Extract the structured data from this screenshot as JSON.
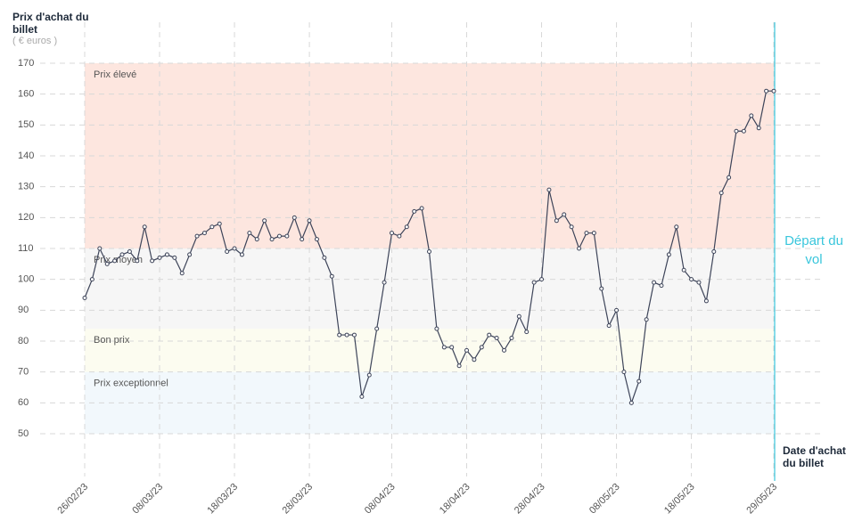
{
  "chart_data": {
    "type": "line",
    "y_title": "Prix d'achat du billet",
    "y_unit": "( € euros )",
    "x_title": "Date d'achat du billet",
    "departure_label": "Départ du vol",
    "departure_color": "#39c6dc",
    "categories": [
      "26/02/23",
      null,
      null,
      null,
      null,
      null,
      null,
      null,
      null,
      null,
      "08/03/23",
      null,
      null,
      null,
      null,
      null,
      null,
      null,
      null,
      null,
      "18/03/23",
      null,
      null,
      null,
      null,
      null,
      null,
      null,
      null,
      null,
      "28/03/23",
      null,
      null,
      null,
      null,
      null,
      null,
      null,
      null,
      null,
      null,
      "08/04/23",
      null,
      null,
      null,
      null,
      null,
      null,
      null,
      null,
      null,
      "18/04/23",
      null,
      null,
      null,
      null,
      null,
      null,
      null,
      null,
      null,
      "28/04/23",
      null,
      null,
      null,
      null,
      null,
      null,
      null,
      null,
      null,
      "08/05/23",
      null,
      null,
      null,
      null,
      null,
      null,
      null,
      null,
      null,
      "18/05/23",
      null,
      null,
      null,
      null,
      null,
      null,
      null,
      null,
      null,
      null,
      "29/05/23"
    ],
    "series": [
      {
        "name": null,
        "color": "#3d4459",
        "values": [
          94,
          100,
          110,
          105,
          106,
          108,
          109,
          106,
          117,
          106,
          107,
          108,
          107,
          102,
          108,
          114,
          115,
          117,
          118,
          109,
          110,
          108,
          115,
          113,
          119,
          113,
          114,
          114,
          120,
          113,
          119,
          113,
          107,
          101,
          82,
          82,
          82,
          62,
          69,
          84,
          99,
          115,
          114,
          117,
          122,
          123,
          109,
          84,
          78,
          78,
          72,
          77,
          74,
          78,
          82,
          81,
          77,
          81,
          88,
          83,
          99,
          100,
          129,
          119,
          121,
          117,
          110,
          115,
          115,
          97,
          85,
          90,
          70,
          60,
          67,
          87,
          99,
          98,
          108,
          117,
          103,
          100,
          99,
          93,
          109,
          128,
          133,
          148,
          148,
          153,
          149,
          161,
          161
        ]
      }
    ],
    "bands": [
      {
        "name": "Prix élevé",
        "from": 110,
        "to": 170,
        "color": "#fde6df"
      },
      {
        "name": "Prix moyen",
        "from": 84,
        "to": 110,
        "color": "#f6f6f6"
      },
      {
        "name": "Bon prix",
        "from": 70,
        "to": 84,
        "color": "#fcfcf0"
      },
      {
        "name": "Prix exceptionnel",
        "from": 50,
        "to": 70,
        "color": "#f2f8fc"
      }
    ],
    "ylim": [
      50,
      170
    ],
    "yticks": [
      50,
      60,
      70,
      80,
      90,
      100,
      110,
      120,
      130,
      140,
      150,
      160,
      170
    ],
    "grid": true
  }
}
